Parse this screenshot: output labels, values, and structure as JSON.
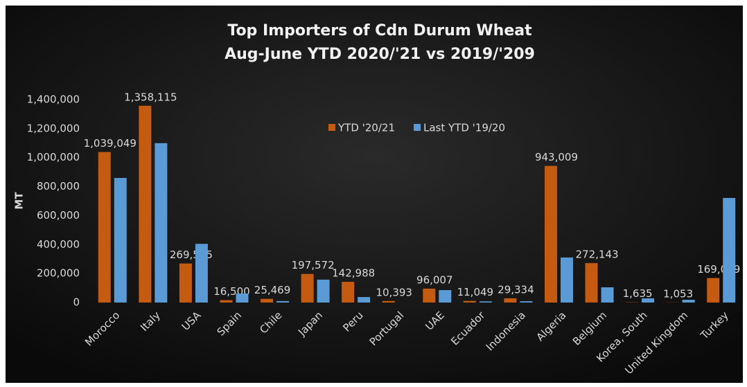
{
  "chart_data": {
    "type": "bar",
    "title": "Top  Importers of Cdn Durum Wheat",
    "subtitle": "Aug-June YTD 2020/'21 vs 2019/'209",
    "y_label": "MT",
    "categories": [
      "Morocco",
      "Italy",
      "USA",
      "Spain",
      "Chile",
      "Japan",
      "Peru",
      "Portugal",
      "UAE",
      "Ecuador",
      "Indonesia",
      "Algeria",
      "Belgium",
      "Korea, South",
      "United Kingdom",
      "Turkey"
    ],
    "series": [
      {
        "name": "YTD '20/21",
        "color": "#c55a11",
        "values": [
          1039049,
          1358115,
          269525,
          16500,
          25469,
          197572,
          142988,
          10393,
          96007,
          11049,
          29334,
          943009,
          272143,
          1635,
          1053,
          169019
        ],
        "value_labels": [
          "1,039,049",
          "1,358,115",
          "269,525",
          "16,500",
          "25,469",
          "197,572",
          "142,988",
          "10,393",
          "96,007",
          "11,049",
          "29,334",
          "943,009",
          "272,143",
          "1,635",
          "1,053",
          "169,019"
        ]
      },
      {
        "name": "Last YTD '19/20",
        "color": "#5b9bd5",
        "values": [
          860000,
          1100000,
          405000,
          62000,
          10000,
          158000,
          38000,
          0,
          86000,
          8000,
          9000,
          311000,
          105000,
          29000,
          19000,
          722000
        ]
      }
    ],
    "ylim": [
      0,
      1400000
    ],
    "yticks": [
      0,
      {
        "value": 200000,
        "label": "200,000"
      },
      {
        "value": 400000,
        "label": "400,000"
      },
      {
        "value": 600000,
        "label": "600,000"
      },
      {
        "value": 800000,
        "label": "800,000"
      },
      {
        "value": 1000000,
        "label": "1,000,000"
      },
      {
        "value": 1200000,
        "label": "1,200,000"
      },
      {
        "value": 1400000,
        "label": "1,400,000"
      }
    ],
    "grid": false,
    "legend": "top"
  }
}
